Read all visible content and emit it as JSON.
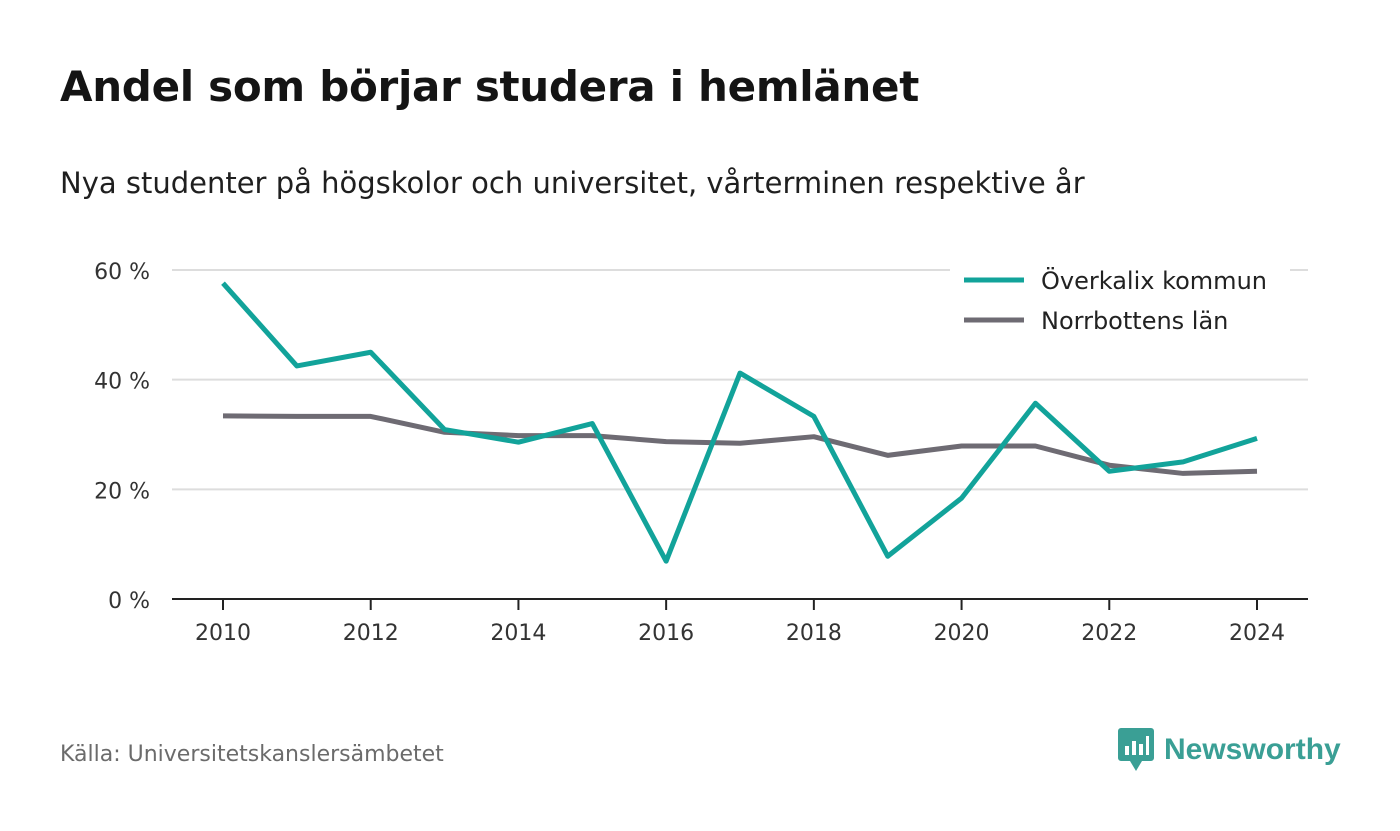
{
  "title": "Andel som börjar studera i hemlänet",
  "subtitle": "Nya studenter på högskolor och universitet, vårterminen respektive år",
  "source": "Källa: Universitetskanslersämbetet",
  "brand": {
    "name": "Newsworthy",
    "icon": "newsworthy-logo-icon",
    "color": "#3a9f95"
  },
  "chart_data": {
    "type": "line",
    "x": [
      2010,
      2011,
      2012,
      2013,
      2014,
      2015,
      2016,
      2017,
      2018,
      2019,
      2020,
      2021,
      2022,
      2023,
      2024
    ],
    "series": [
      {
        "name": "Överkalix kommun",
        "color": "#12a39a",
        "values": [
          57.6,
          42.5,
          45.0,
          30.9,
          28.6,
          32.0,
          6.9,
          41.2,
          33.3,
          7.8,
          18.4,
          35.7,
          23.3,
          25.0,
          29.3
        ]
      },
      {
        "name": "Norrbottens län",
        "color": "#6e6b73",
        "values": [
          33.4,
          33.3,
          33.3,
          30.4,
          29.8,
          29.8,
          28.7,
          28.4,
          29.6,
          26.2,
          27.9,
          27.9,
          24.4,
          22.9,
          23.3
        ]
      }
    ],
    "ylim": [
      0,
      60
    ],
    "yticks": [
      0,
      20,
      40,
      60
    ],
    "ytick_labels": [
      "0 %",
      "20 %",
      "40 %",
      "60 %"
    ],
    "xticks": [
      2010,
      2012,
      2014,
      2016,
      2018,
      2020,
      2022,
      2024
    ],
    "xtick_labels": [
      "2010",
      "2012",
      "2014",
      "2016",
      "2018",
      "2020",
      "2022",
      "2024"
    ],
    "xlabel": "",
    "ylabel": "",
    "grid": true,
    "legend": "top-right"
  }
}
